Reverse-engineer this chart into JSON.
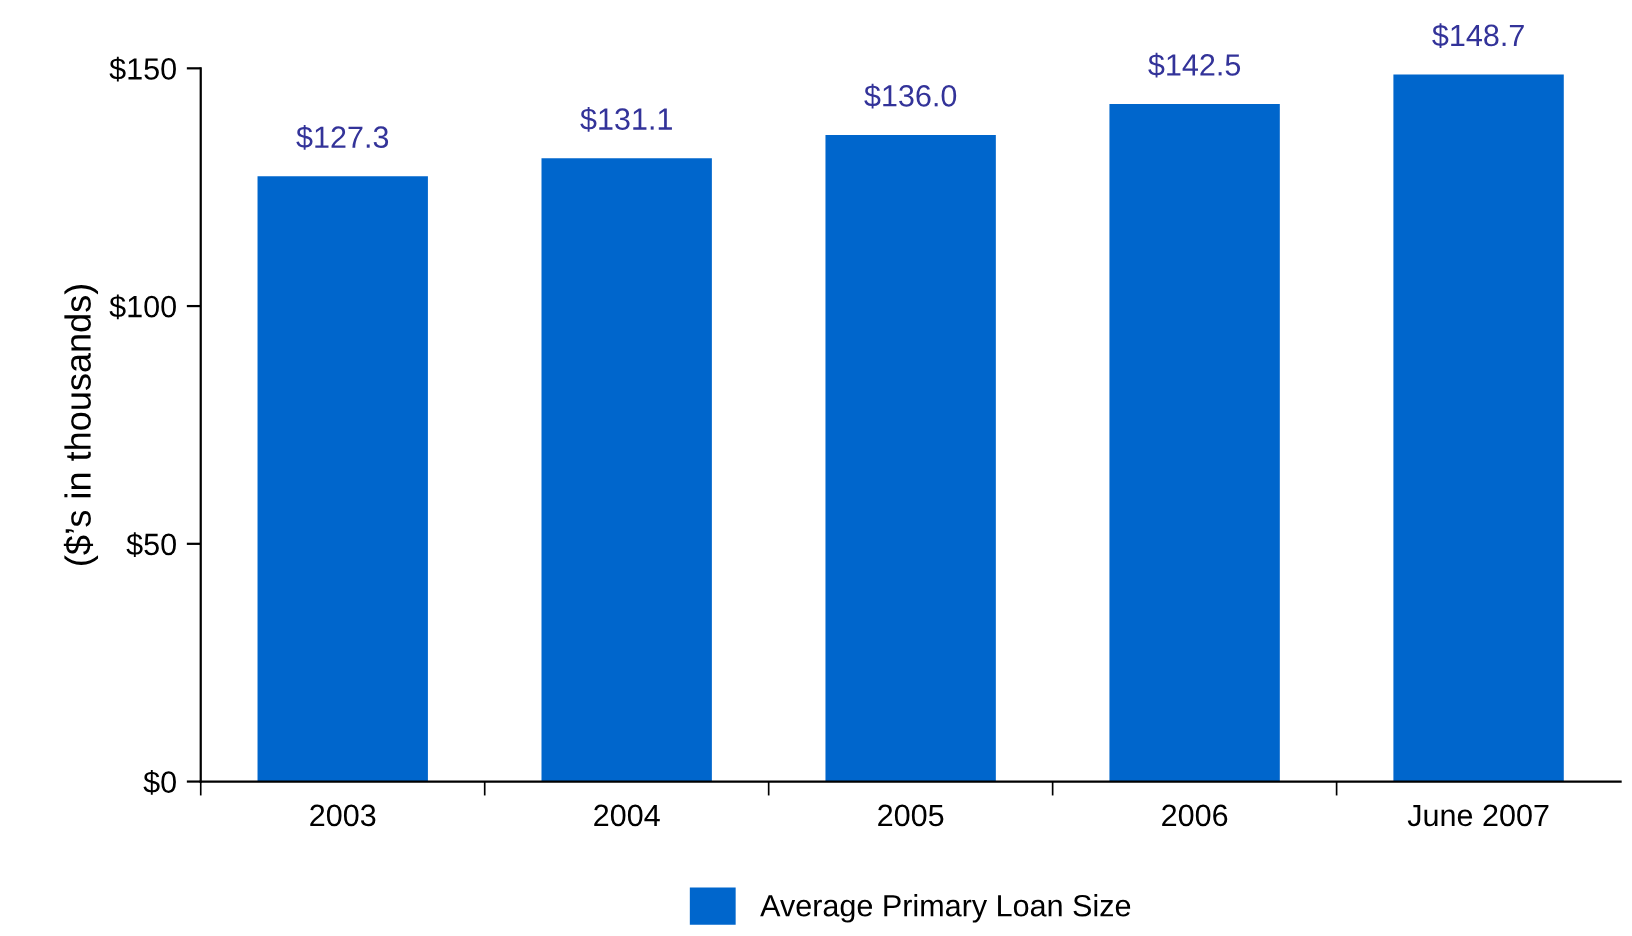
{
  "chart_data": {
    "type": "bar",
    "ylabel": "($’s in thousands)",
    "categories": [
      "2003",
      "2004",
      "2005",
      "2006",
      "June 2007"
    ],
    "series": [
      {
        "name": "Average Primary Loan Size",
        "color": "#0066cc",
        "values": [
          127.3,
          131.1,
          136.0,
          142.5,
          148.7
        ],
        "value_labels": [
          "$127.3",
          "$131.1",
          "$136.0",
          "$142.5",
          "$148.7"
        ]
      }
    ],
    "ylim": [
      0,
      150
    ],
    "yticks": [
      {
        "value": 0,
        "label": "$0"
      },
      {
        "value": 50,
        "label": "$50"
      },
      {
        "value": 100,
        "label": "$100"
      },
      {
        "value": 150,
        "label": "$150"
      }
    ],
    "grid": false,
    "legend": "bottom"
  }
}
